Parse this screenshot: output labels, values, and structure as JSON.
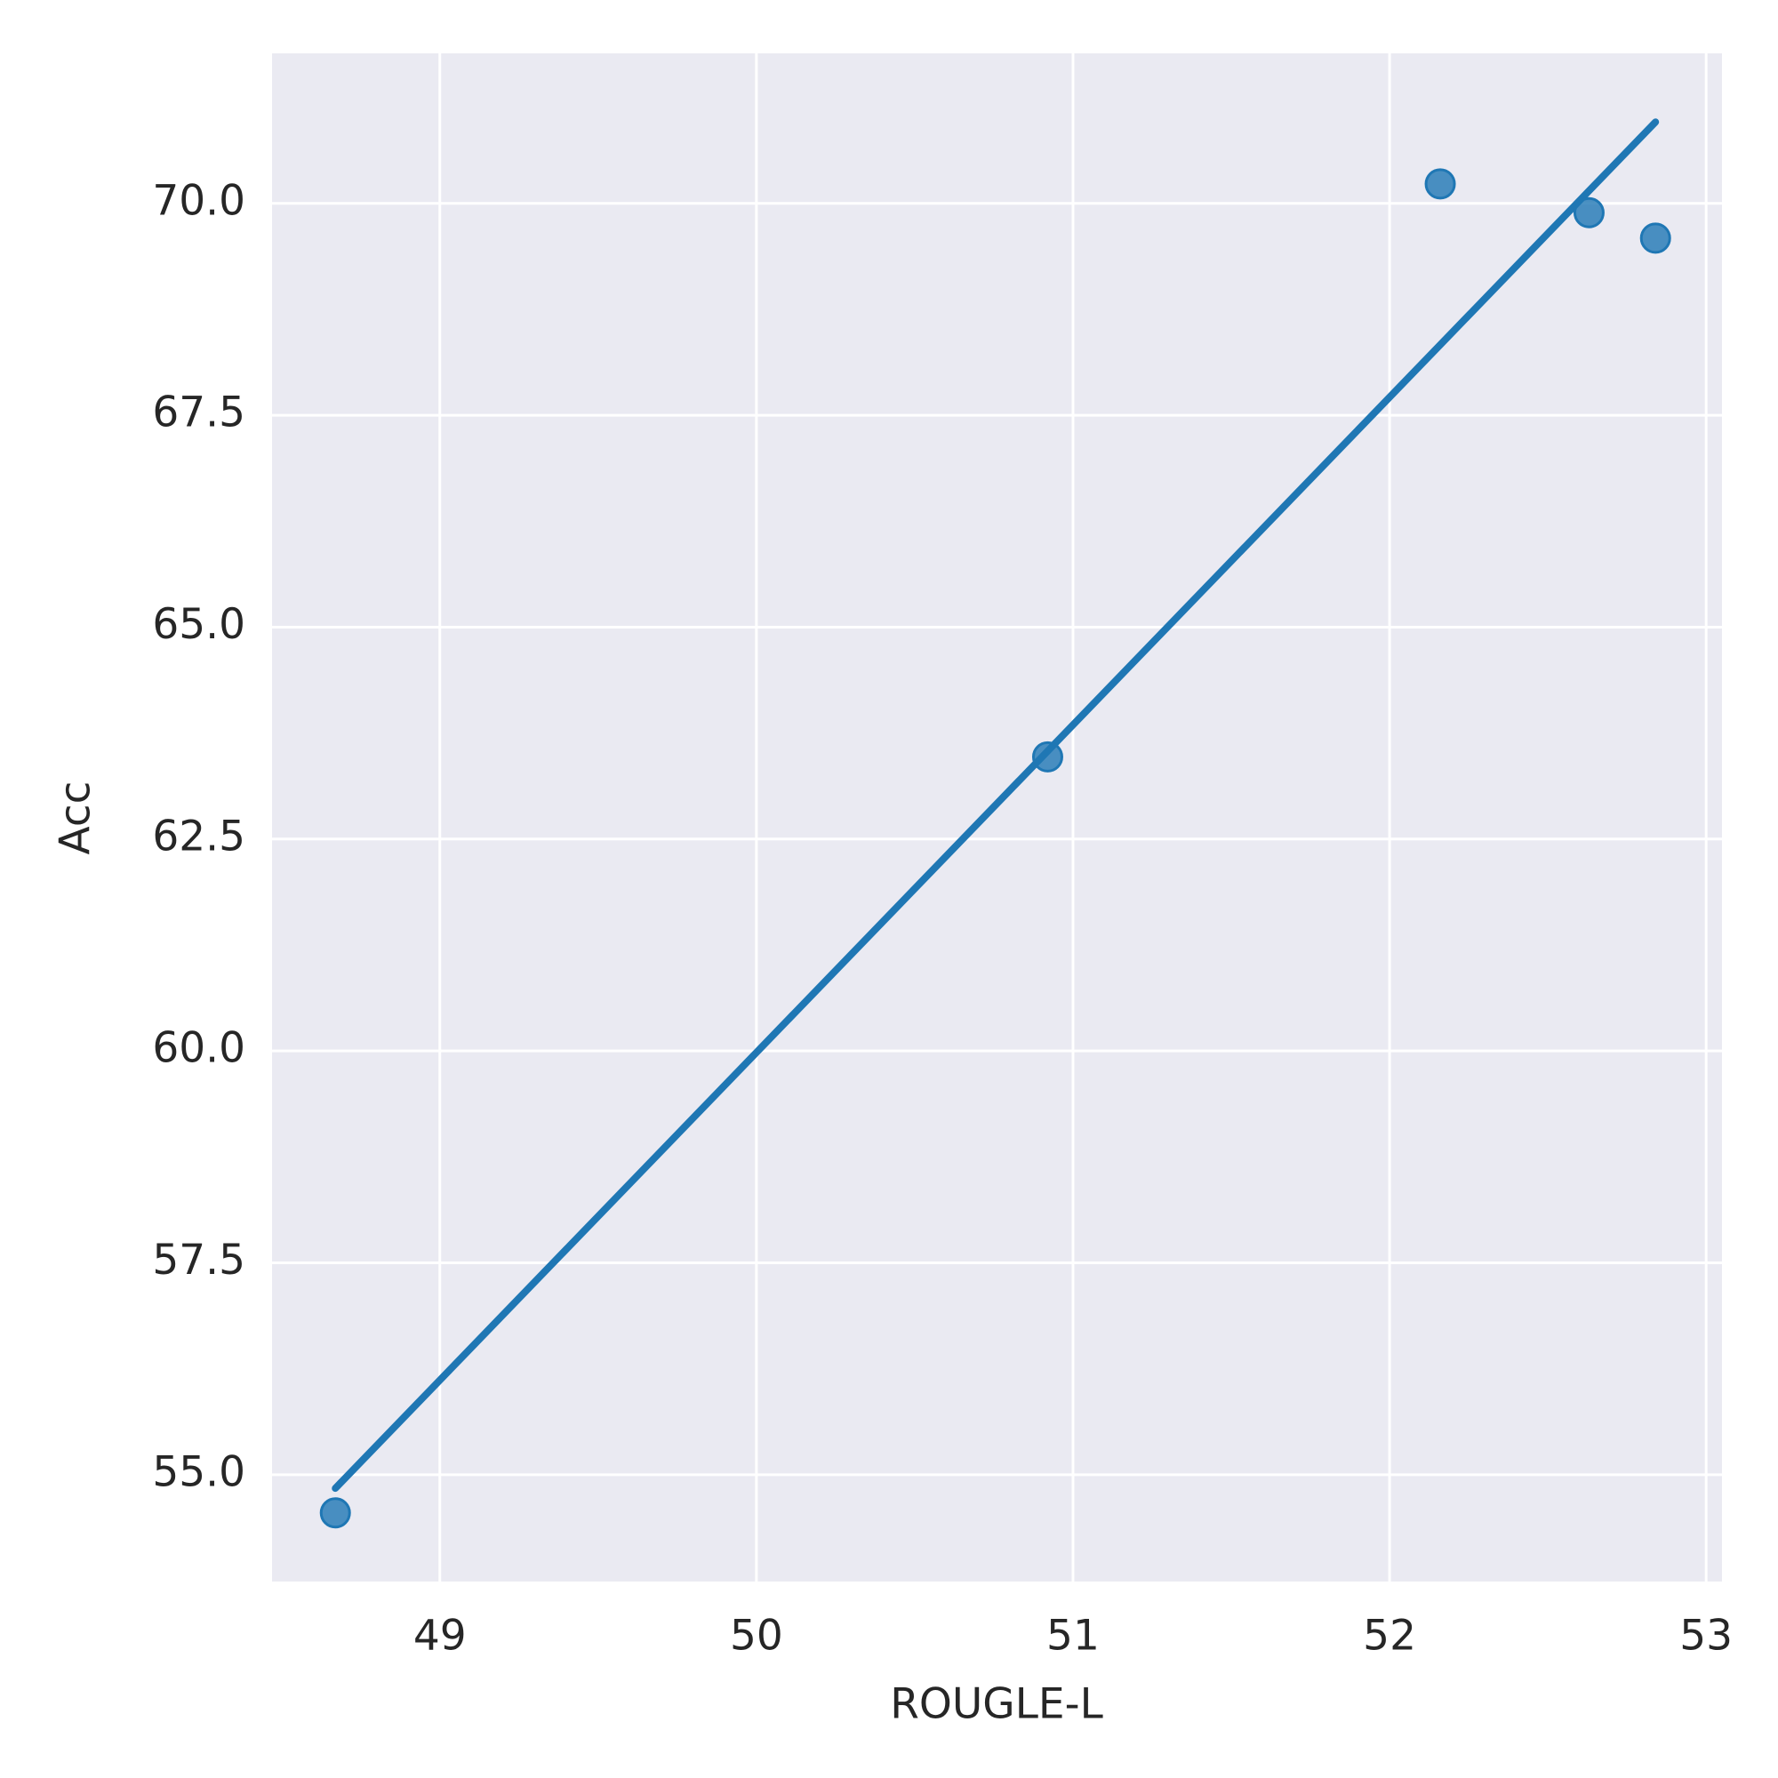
{
  "chart_data": {
    "type": "scatter",
    "x_label": "ROUGLE-L",
    "y_label": "Acc",
    "x": [
      48.67,
      50.92,
      52.16,
      52.63,
      52.84
    ],
    "values": [
      54.55,
      63.47,
      70.23,
      69.89,
      69.59
    ],
    "color": "#1f77b4",
    "fit_line": {
      "x": [
        48.67,
        52.84
      ],
      "values": [
        54.84,
        70.96
      ]
    },
    "xlim": [
      48.47,
      53.05
    ],
    "ylim": [
      53.74,
      71.77
    ],
    "xticks": [
      49,
      50,
      51,
      52,
      53
    ],
    "yticks": [
      {
        "value": 55,
        "label": "55.0"
      },
      {
        "value": 57.5,
        "label": "57.5"
      },
      {
        "value": 60,
        "label": "60.0"
      },
      {
        "value": 62.5,
        "label": "62.5"
      },
      {
        "value": 65,
        "label": "65.0"
      },
      {
        "value": 67.5,
        "label": "67.5"
      },
      {
        "value": 70,
        "label": "70.0"
      }
    ],
    "grid": true
  }
}
